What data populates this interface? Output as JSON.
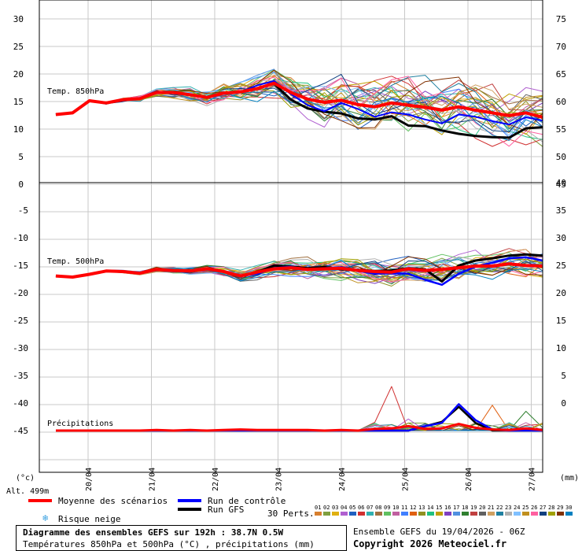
{
  "chart_data": {
    "type": "line",
    "panels": [
      {
        "label": "Temp. 850hPa",
        "left_ticks": [
          "30",
          "25",
          "20",
          "15",
          "10",
          "5",
          "0"
        ],
        "right_ticks": [
          "75",
          "70",
          "65",
          "60",
          "55",
          "50",
          "45"
        ]
      },
      {
        "label": "Temp. 500hPa",
        "left_ticks": [
          "-5",
          "-10",
          "-15",
          "-20",
          "-25",
          "-30",
          "-35",
          "-40",
          "-45"
        ],
        "right_ticks": [
          "40",
          "35",
          "30",
          "25",
          "20",
          "15",
          "10",
          "5",
          "0"
        ]
      }
    ],
    "precip_label": "Précipitations",
    "left_unit": "(°c)",
    "right_unit": "(mm)",
    "altitude": "Alt. 499m",
    "dates": [
      "20/04",
      "21/04",
      "22/04",
      "23/04",
      "24/04",
      "25/04",
      "26/04",
      "27/04"
    ],
    "t850": {
      "mean": [
        12.5,
        12.8,
        15,
        14.6,
        15.2,
        15.4,
        16.5,
        16.5,
        16.1,
        15.6,
        16.4,
        16.6,
        17.2,
        18.2,
        16.5,
        15.3,
        14.7,
        15.1,
        14.3,
        13.9,
        14.6,
        14.2,
        13.8,
        13.3,
        13.9,
        13.3,
        12.8,
        12.3,
        12.8,
        12.0
      ],
      "control": [
        12.5,
        12.8,
        15,
        14.6,
        15.2,
        15.4,
        16.5,
        16.5,
        16.1,
        15.6,
        16.4,
        16.6,
        17.8,
        18.6,
        16.2,
        14.2,
        13.1,
        14.6,
        13.5,
        12.1,
        12.9,
        12.5,
        11.6,
        10.9,
        12.5,
        12.1,
        11.3,
        10.7,
        12.0,
        11.4
      ],
      "gfs": [
        12.5,
        12.8,
        15,
        14.6,
        15.2,
        15.4,
        16.5,
        16.5,
        16.1,
        15.6,
        16.4,
        16.6,
        17.3,
        18.1,
        15.2,
        13.6,
        13.0,
        12.7,
        11.8,
        11.6,
        12.2,
        10.5,
        10.4,
        9.6,
        9.0,
        8.6,
        8.4,
        8.3,
        10.0,
        10.2
      ]
    },
    "t500": {
      "mean": [
        -16.8,
        -17.0,
        -16.5,
        -15.9,
        -16.0,
        -16.3,
        -15.6,
        -15.8,
        -15.9,
        -15.5,
        -16.0,
        -16.8,
        -16.1,
        -15.5,
        -15.3,
        -15.6,
        -15.5,
        -15.4,
        -15.8,
        -16.0,
        -16.1,
        -15.5,
        -15.8,
        -15.6,
        -15.3,
        -15.0,
        -15.0,
        -14.6,
        -14.9,
        -15.0
      ],
      "control": [
        -16.8,
        -17.0,
        -16.5,
        -15.9,
        -16.0,
        -16.3,
        -15.6,
        -15.8,
        -15.9,
        -15.5,
        -16.0,
        -16.8,
        -16.4,
        -15.4,
        -15.1,
        -15.7,
        -15.4,
        -15.2,
        -15.9,
        -16.4,
        -16.3,
        -16.4,
        -17.5,
        -18.4,
        -16.4,
        -15.1,
        -14.4,
        -13.6,
        -13.4,
        -14.0
      ],
      "gfs": [
        -16.8,
        -17.0,
        -16.5,
        -15.9,
        -16.0,
        -16.3,
        -15.6,
        -15.8,
        -15.9,
        -15.5,
        -16.0,
        -16.8,
        -16.1,
        -14.9,
        -15.1,
        -15.4,
        -15.2,
        -15.6,
        -15.7,
        -15.9,
        -15.8,
        -15.4,
        -15.6,
        -17.8,
        -14.9,
        -14.0,
        -13.6,
        -13.1,
        -12.9,
        -13.1
      ]
    },
    "precip_mm": {
      "mean": [
        0,
        0,
        0,
        0,
        0,
        0,
        0.1,
        0,
        0.1,
        0,
        0.1,
        0.2,
        0.1,
        0.1,
        0.1,
        0.1,
        0,
        0.1,
        0,
        0.3,
        0.4,
        0.8,
        0.3,
        0.4,
        1.2,
        0.5,
        0.2,
        0.1,
        0.4,
        0.1
      ],
      "control": [
        0,
        0,
        0,
        0,
        0,
        0,
        0,
        0,
        0,
        0,
        0,
        0,
        0,
        0,
        0,
        0,
        0,
        0,
        0,
        0,
        0,
        0,
        0.8,
        1.4,
        4.8,
        1.9,
        0.2,
        0,
        0,
        0
      ],
      "gfs": [
        0,
        0,
        0,
        0,
        0,
        0,
        0,
        0,
        0,
        0,
        0,
        0,
        0,
        0,
        0,
        0,
        0,
        0,
        0,
        0,
        0,
        0,
        0.8,
        1.6,
        4.3,
        1.4,
        0,
        0,
        0,
        0
      ]
    }
  },
  "legend": {
    "mean": "Moyenne des scénarios",
    "control": "Run de contrôle",
    "gfs": "Run GFS",
    "snow": "Risque neige",
    "perts_label": "30 Perts.",
    "perts": [
      "01",
      "02",
      "03",
      "04",
      "05",
      "06",
      "07",
      "08",
      "09",
      "10",
      "11",
      "12",
      "13",
      "14",
      "15",
      "16",
      "17",
      "18",
      "19",
      "20",
      "21",
      "22",
      "23",
      "24",
      "25",
      "26",
      "27",
      "28",
      "29",
      "30"
    ],
    "pert_colors": [
      "#d77f2e",
      "#7f9f3f",
      "#e0b010",
      "#b060d0",
      "#2060c0",
      "#d03030",
      "#30b0b0",
      "#a07040",
      "#60c060",
      "#c060a0",
      "#4080ff",
      "#e06010",
      "#909020",
      "#20c080",
      "#c0a000",
      "#8040c0",
      "#5090e0",
      "#308030",
      "#c04040",
      "#606060",
      "#d0a060",
      "#2080a0",
      "#b0b0b0",
      "#80c0ff",
      "#c09020",
      "#ff60a0",
      "#104080",
      "#a0a000",
      "#803000",
      "#0080c0"
    ]
  },
  "colors": {
    "mean": "#ff0000",
    "control": "#0000ff",
    "gfs": "#000000"
  },
  "footer": {
    "title": "Diagramme des ensembles GEFS sur 192h : 38.7N 0.5W",
    "subtitle": "Températures 850hPa et 500hPa (°C) , précipitations (mm)",
    "run": "Ensemble GEFS du 19/04/2026 - 06Z",
    "copyright": "Copyright 2026 Meteociel.fr"
  }
}
